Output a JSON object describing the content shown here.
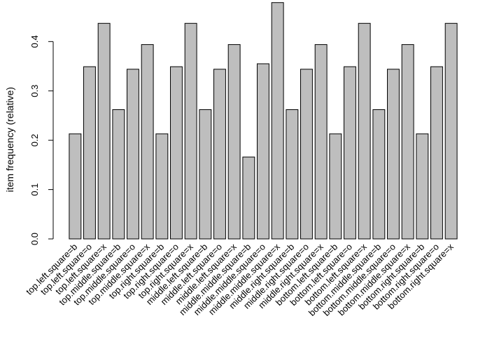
{
  "chart_data": {
    "type": "bar",
    "title": "",
    "xlabel": "",
    "ylabel": "item frequency (relative)",
    "ylim": [
      0,
      0.48
    ],
    "yticks": [
      0.0,
      0.1,
      0.2,
      0.3,
      0.4
    ],
    "ytick_labels": [
      "0.0",
      "0.1",
      "0.2",
      "0.3",
      "0.4"
    ],
    "grid": false,
    "bar_color": "#bebebe",
    "edge_color": "#000000",
    "categories": [
      "top.left.square=b",
      "top.left.square=o",
      "top.left.square=x",
      "top.middle.square=b",
      "top.middle.square=o",
      "top.middle.square=x",
      "top.right.square=b",
      "top.right.square=o",
      "top.right.square=x",
      "middle.left.square=b",
      "middle.left.square=o",
      "middle.left.square=x",
      "middle.middle.square=b",
      "middle.middle.square=o",
      "middle.middle.square=x",
      "middle.right.square=b",
      "middle.right.square=o",
      "middle.right.square=x",
      "bottom.left.square=b",
      "bottom.left.square=o",
      "bottom.left.square=x",
      "bottom.middle.square=b",
      "bottom.middle.square=o",
      "bottom.middle.square=x",
      "bottom.right.square=b",
      "bottom.right.square=o",
      "bottom.right.square=x"
    ],
    "values": [
      0.213,
      0.349,
      0.437,
      0.262,
      0.344,
      0.394,
      0.213,
      0.349,
      0.437,
      0.262,
      0.344,
      0.394,
      0.166,
      0.355,
      0.479,
      0.262,
      0.344,
      0.394,
      0.213,
      0.349,
      0.437,
      0.262,
      0.344,
      0.394,
      0.213,
      0.349,
      0.437
    ]
  }
}
